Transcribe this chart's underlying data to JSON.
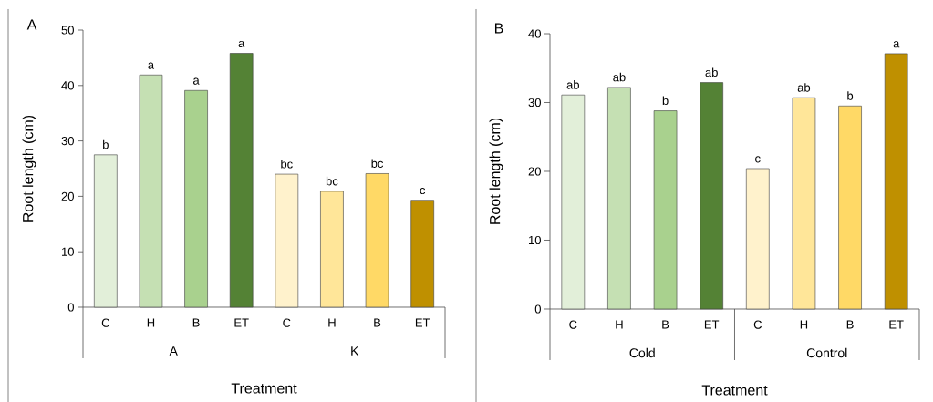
{
  "chart_data": [
    {
      "type": "bar",
      "title": "A",
      "xlabel": "Treatment",
      "ylabel": "Root length (cm)",
      "categories": [
        "C",
        "H",
        "B",
        "ET",
        "C",
        "H",
        "B",
        "ET"
      ],
      "values": [
        27.5,
        41.9,
        39.1,
        45.8,
        24.0,
        20.9,
        24.1,
        19.3
      ],
      "colors": [
        "#e2efd9",
        "#c5e0b3",
        "#a9d18e",
        "#548235",
        "#fff2cc",
        "#ffe699",
        "#ffd966",
        "#bf9000"
      ],
      "value_labels": [
        "b",
        "a",
        "a",
        "a",
        "bc",
        "bc",
        "bc",
        "c"
      ],
      "annotations": [
        "A",
        "K"
      ],
      "ylim": [
        0,
        50
      ],
      "yticks": [
        0,
        10,
        20,
        30,
        40,
        50
      ]
    },
    {
      "type": "bar",
      "title": "B",
      "xlabel": "Treatment",
      "ylabel": "Root length (cm)",
      "categories": [
        "C",
        "H",
        "B",
        "ET",
        "C",
        "H",
        "B",
        "ET"
      ],
      "values": [
        31.1,
        32.2,
        28.8,
        32.9,
        20.4,
        30.7,
        29.5,
        37.1
      ],
      "colors": [
        "#e2efd9",
        "#c5e0b3",
        "#a9d18e",
        "#548235",
        "#fff2cc",
        "#ffe699",
        "#ffd966",
        "#bf9000"
      ],
      "value_labels": [
        "ab",
        "ab",
        "b",
        "ab",
        "c",
        "ab",
        "b",
        "a"
      ],
      "annotations": [
        "Cold",
        "Control"
      ],
      "ylim": [
        0,
        40
      ],
      "yticks": [
        0,
        10,
        20,
        30,
        40
      ]
    }
  ]
}
